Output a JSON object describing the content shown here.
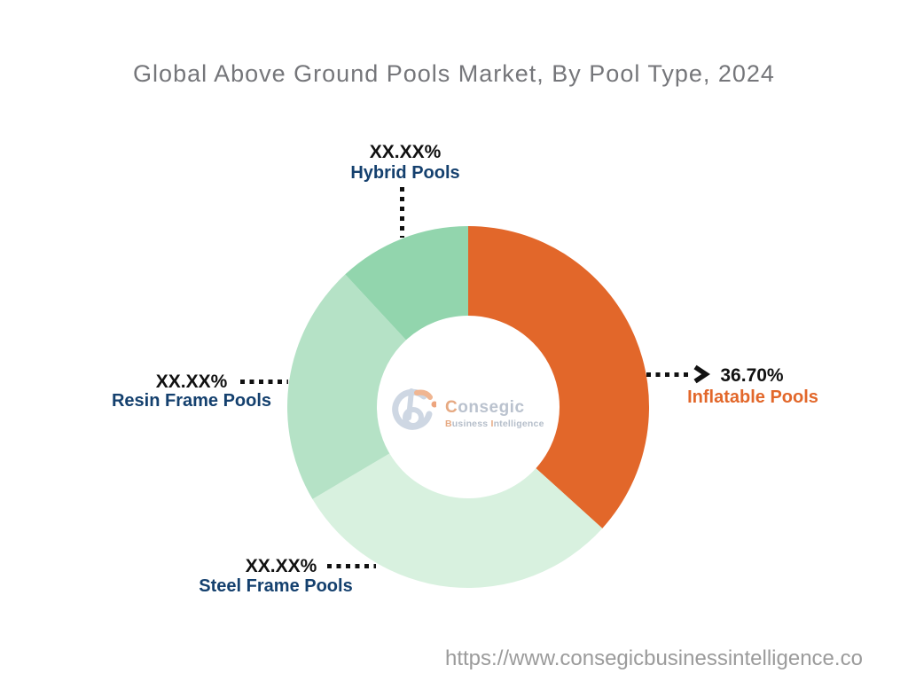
{
  "title": "Global Above Ground Pools Market, By Pool Type, 2024",
  "watermark": {
    "brand": "Consegic",
    "tagline_word1": "usiness",
    "tagline_word2": "ntelligence",
    "tagline_initial1": "B",
    "tagline_initial2": "I",
    "logo": "consegic-b-logo"
  },
  "footer": {
    "url": "https://www.consegicbusinessintelligence.co"
  },
  "colors": {
    "accent_orange": "#E2672A",
    "navy_label": "#14406E",
    "value_text": "#111111",
    "title_gray": "#75767A",
    "url_gray": "#9B9B9B"
  },
  "chart_data": {
    "type": "pie",
    "subtype": "donut",
    "title": "Global Above Ground Pools Market, By Pool Type, 2024",
    "direction": "clockwise",
    "start_angle_deg": 0,
    "inner_radius_ratio": 0.5,
    "legend_position": "callout-labels",
    "segments": [
      {
        "label": "Inflatable Pools",
        "display_value": "36.70%",
        "value": 36.7,
        "color": "#E2672A",
        "label_color": "#E2672A"
      },
      {
        "label": "Steel Frame Pools",
        "display_value": "XX.XX%",
        "value": 29.8,
        "color": "#D8F1DF",
        "label_color": "#14406E"
      },
      {
        "label": "Resin Frame Pools",
        "display_value": "XX.XX%",
        "value": 21.6,
        "color": "#B5E2C6",
        "label_color": "#14406E"
      },
      {
        "label": "Hybrid Pools",
        "display_value": "XX.XX%",
        "value": 11.9,
        "color": "#92D5AD",
        "label_color": "#14406E"
      }
    ]
  }
}
